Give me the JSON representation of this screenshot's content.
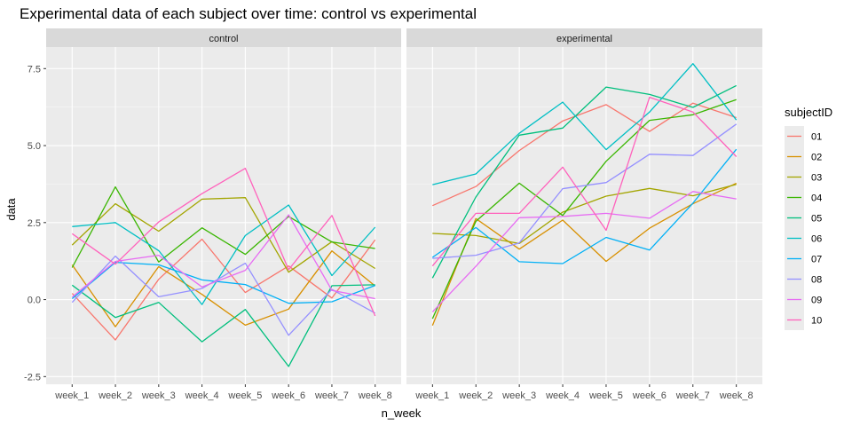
{
  "chart_data": {
    "type": "line",
    "title": "Experimental data of each subject over time: control vs experimental",
    "xlabel": "n_week",
    "ylabel": "data",
    "x": [
      "week_1",
      "week_2",
      "week_3",
      "week_4",
      "week_5",
      "week_6",
      "week_7",
      "week_8"
    ],
    "yticks": [
      "-2.5",
      "0.0",
      "2.5",
      "5.0",
      "7.5"
    ],
    "ytick_values": [
      -2.5,
      0,
      2.5,
      5,
      7.5
    ],
    "ylim": [
      -2.75,
      8.2
    ],
    "grid": true,
    "legend": {
      "title": "subjectID",
      "placement": "right",
      "entries": [
        {
          "label": "01",
          "color": "#f8766d"
        },
        {
          "label": "02",
          "color": "#d89000"
        },
        {
          "label": "03",
          "color": "#a3a500"
        },
        {
          "label": "04",
          "color": "#39b600"
        },
        {
          "label": "05",
          "color": "#00bf7d"
        },
        {
          "label": "06",
          "color": "#00bfc4"
        },
        {
          "label": "07",
          "color": "#00b0f6"
        },
        {
          "label": "08",
          "color": "#9590ff"
        },
        {
          "label": "09",
          "color": "#e76bf3"
        },
        {
          "label": "10",
          "color": "#ff62bc"
        }
      ]
    },
    "panels": [
      {
        "name": "control",
        "series": [
          {
            "name": "01",
            "values": [
              0.2,
              -1.31,
              0.66,
              1.96,
              0.23,
              1.09,
              0.05,
              1.94
            ]
          },
          {
            "name": "02",
            "values": [
              1.13,
              -0.88,
              1.07,
              0.17,
              -0.83,
              -0.31,
              1.58,
              0.44
            ]
          },
          {
            "name": "03",
            "values": [
              1.77,
              3.11,
              2.22,
              3.26,
              3.31,
              0.89,
              1.88,
              1.01
            ]
          },
          {
            "name": "04",
            "values": [
              1.04,
              3.66,
              1.22,
              2.33,
              1.47,
              2.7,
              1.87,
              1.66
            ]
          },
          {
            "name": "05",
            "values": [
              0.47,
              -0.58,
              -0.09,
              -1.37,
              -0.32,
              -2.17,
              0.45,
              0.48
            ]
          },
          {
            "name": "06",
            "values": [
              2.37,
              2.5,
              1.59,
              -0.16,
              2.08,
              3.07,
              0.78,
              2.35
            ]
          },
          {
            "name": "07",
            "values": [
              0.03,
              1.21,
              1.13,
              0.64,
              0.49,
              -0.12,
              -0.07,
              0.46
            ]
          },
          {
            "name": "08",
            "values": [
              -0.09,
              1.41,
              0.09,
              0.36,
              1.18,
              -1.16,
              0.33,
              -0.44
            ]
          },
          {
            "name": "09",
            "values": [
              0.08,
              1.24,
              1.44,
              0.41,
              0.95,
              2.75,
              0.3,
              0.03
            ]
          },
          {
            "name": "10",
            "values": [
              2.14,
              1.15,
              2.52,
              3.44,
              4.26,
              0.97,
              2.73,
              -0.53
            ]
          }
        ]
      },
      {
        "name": "experimental",
        "series": [
          {
            "name": "01",
            "values": [
              3.05,
              3.67,
              4.84,
              5.8,
              6.33,
              5.46,
              6.38,
              5.91
            ]
          },
          {
            "name": "02",
            "values": [
              -0.84,
              2.63,
              1.64,
              2.58,
              1.24,
              2.32,
              3.11,
              3.78
            ]
          },
          {
            "name": "03",
            "values": [
              2.15,
              2.08,
              1.82,
              2.84,
              3.36,
              3.61,
              3.37,
              3.74
            ]
          },
          {
            "name": "04",
            "values": [
              -0.62,
              2.54,
              3.78,
              2.73,
              4.49,
              5.82,
              6.0,
              6.49
            ]
          },
          {
            "name": "05",
            "values": [
              0.7,
              3.33,
              5.34,
              5.57,
              6.9,
              6.66,
              6.24,
              6.95
            ]
          },
          {
            "name": "06",
            "values": [
              3.73,
              4.08,
              5.4,
              6.41,
              4.87,
              6.09,
              7.66,
              5.83
            ]
          },
          {
            "name": "07",
            "values": [
              1.37,
              2.34,
              1.23,
              1.17,
              2.02,
              1.61,
              3.13,
              4.88
            ]
          },
          {
            "name": "08",
            "values": [
              1.34,
              1.44,
              1.84,
              3.6,
              3.8,
              4.72,
              4.68,
              5.7
            ]
          },
          {
            "name": "09",
            "values": [
              -0.4,
              1.08,
              2.66,
              2.7,
              2.8,
              2.64,
              3.51,
              3.27
            ]
          },
          {
            "name": "10",
            "values": [
              1.09,
              2.8,
              2.8,
              4.3,
              2.25,
              6.57,
              6.09,
              4.64
            ]
          }
        ]
      }
    ]
  }
}
